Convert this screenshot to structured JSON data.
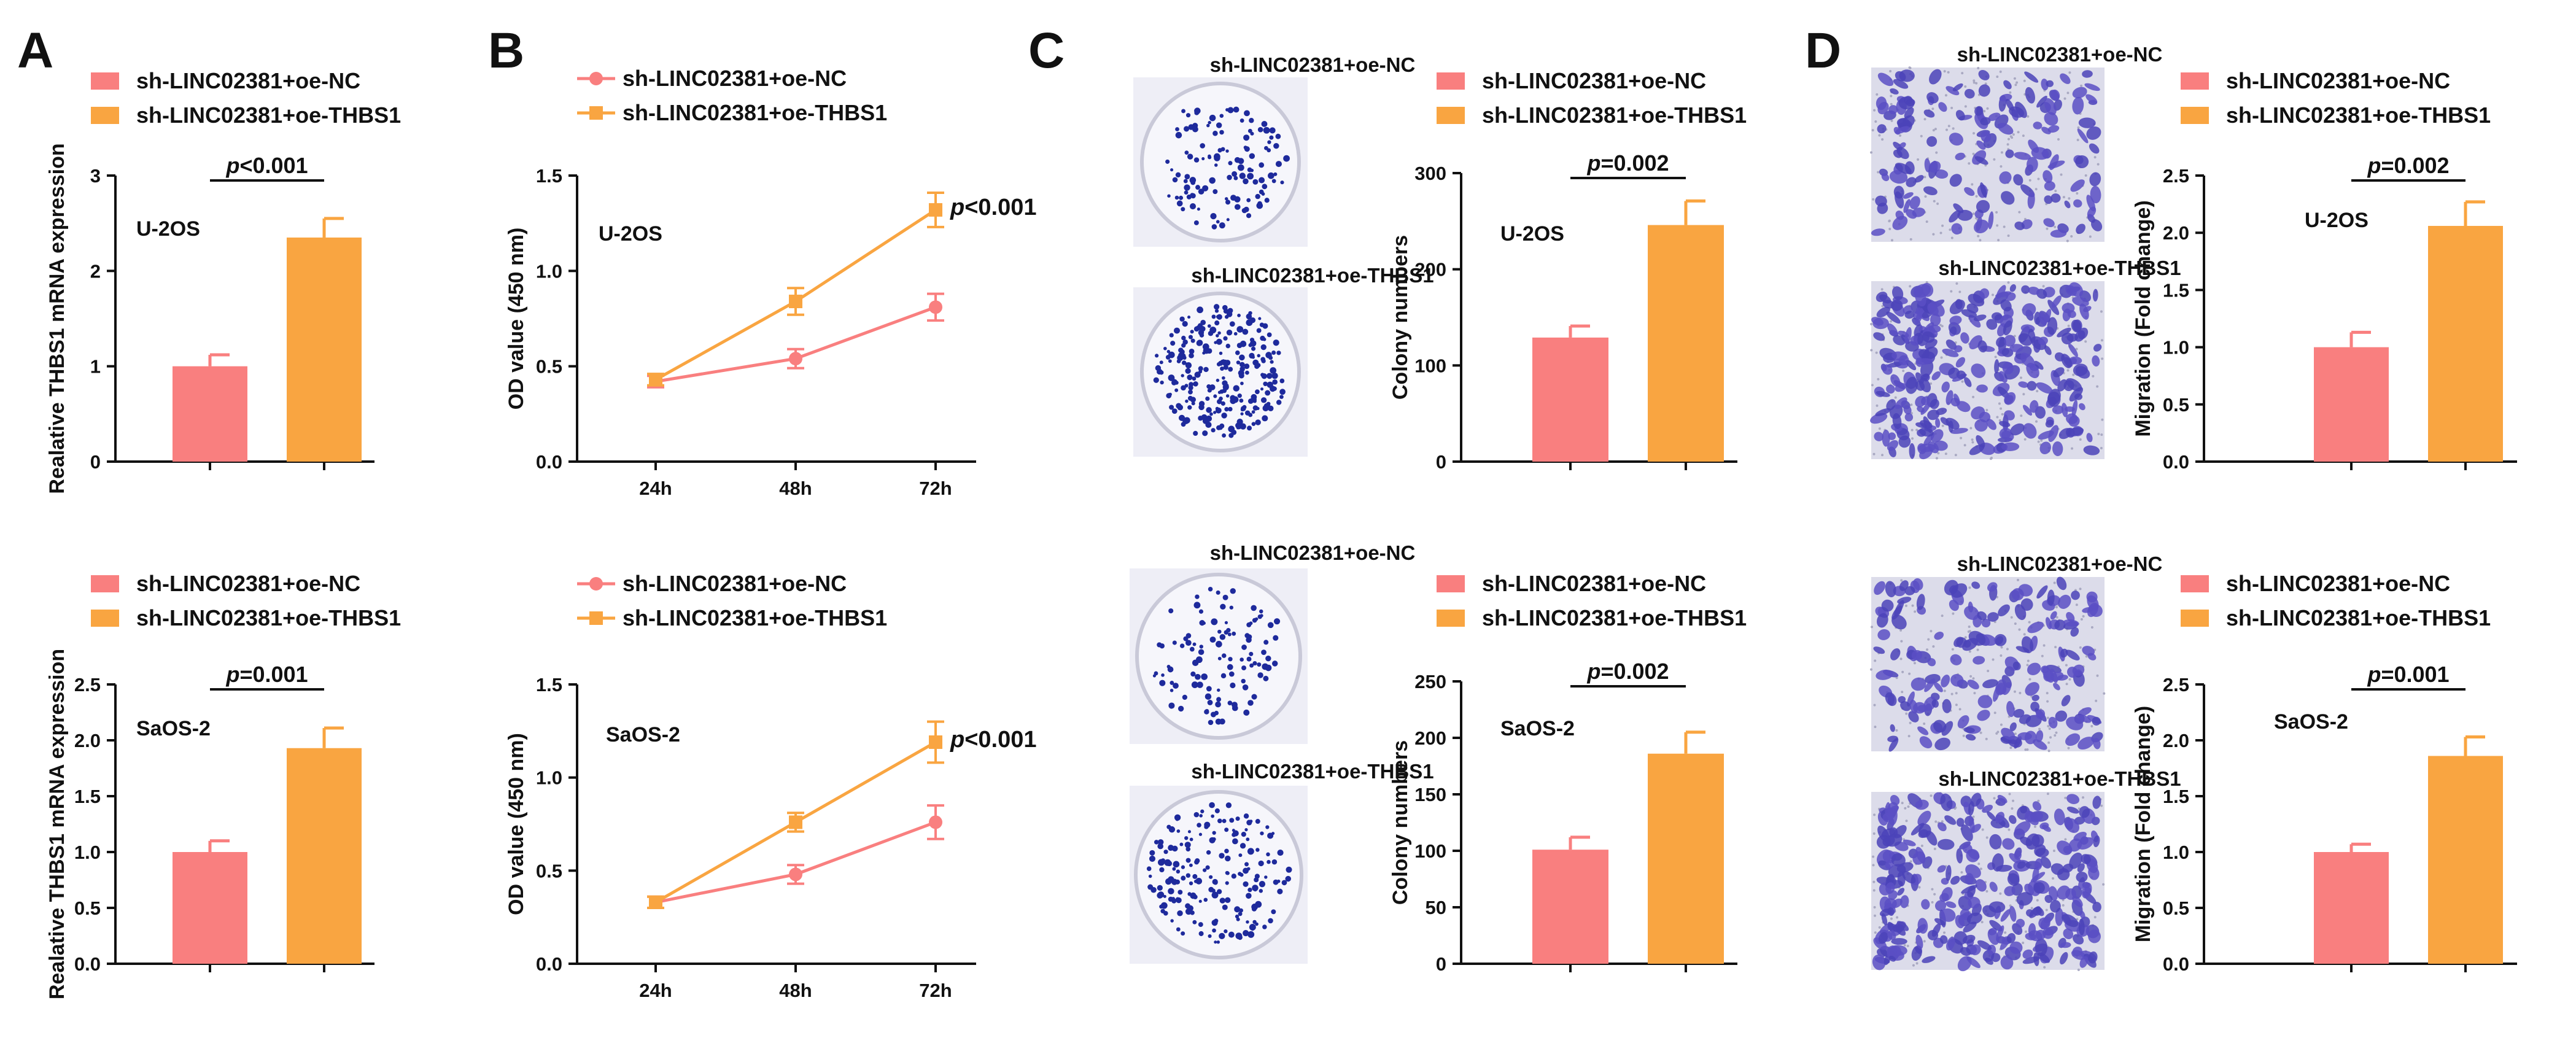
{
  "colors": {
    "nc": "#F97F7F",
    "thbs1": "#F9A541",
    "axis": "#111111",
    "dish": "#EDEDF6",
    "dot": "#1E2A9C",
    "cell": "#5A4FC4",
    "membrane": "#DCDCEA"
  },
  "legend": {
    "nc": "sh-LINC02381+oe-NC",
    "thbs1": "sh-LINC02381+oe-THBS1"
  },
  "panels": {
    "A": {
      "label": "A",
      "ylabel": "Realative THBS1 mRNA expression"
    },
    "B": {
      "label": "B",
      "ylabel": "OD value (450 nm)"
    },
    "C": {
      "label": "C",
      "ylabel": "Colony numbers"
    },
    "D": {
      "label": "D",
      "ylabel": "Migration (Fold change)"
    }
  },
  "image_captions": {
    "C_top_nc": "sh-LINC02381+oe-NC",
    "C_top_thbs1": "sh-LINC02381+oe-THBS1",
    "C_bottom_nc": "sh-LINC02381+oe-NC",
    "C_bottom_thbs1": "sh-LINC02381+oe-THBS1",
    "D_top_nc": "sh-LINC02381+oe-NC",
    "D_top_thbs1": "sh-LINC02381+oe-THBS1",
    "D_bottom_nc": "sh-LINC02381+oe-NC",
    "D_bottom_thbs1": "sh-LINC02381+oe-THBS1"
  },
  "chart_data": [
    {
      "id": "A1",
      "panel": "A",
      "type": "bar",
      "cell_line": "U-2OS",
      "series": [
        "sh-LINC02381+oe-NC",
        "sh-LINC02381+oe-THBS1"
      ],
      "values": [
        1.0,
        2.35
      ],
      "errors": [
        0.12,
        0.2
      ],
      "ylim": [
        0,
        3
      ],
      "yticks": [
        0,
        1,
        2,
        3
      ],
      "tick_labels": [
        "0",
        "1",
        "2",
        "3"
      ],
      "p_text": "p<0.001",
      "ylabel": "Realative THBS1 mRNA expression"
    },
    {
      "id": "A2",
      "panel": "A",
      "type": "bar",
      "cell_line": "SaOS-2",
      "series": [
        "sh-LINC02381+oe-NC",
        "sh-LINC02381+oe-THBS1"
      ],
      "values": [
        1.0,
        1.93
      ],
      "errors": [
        0.1,
        0.18
      ],
      "ylim": [
        0,
        2.5
      ],
      "yticks": [
        0,
        0.5,
        1,
        1.5,
        2,
        2.5
      ],
      "tick_labels": [
        "0.0",
        "0.5",
        "1.0",
        "1.5",
        "2.0",
        "2.5"
      ],
      "p_text": "p=0.001",
      "ylabel": "Realative THBS1 mRNA expression"
    },
    {
      "id": "B1",
      "panel": "B",
      "type": "line",
      "cell_line": "U-2OS",
      "categories": [
        "24h",
        "48h",
        "72h"
      ],
      "series": [
        {
          "name": "sh-LINC02381+oe-NC",
          "values": [
            0.42,
            0.54,
            0.81
          ],
          "errors": [
            0.03,
            0.05,
            0.07
          ]
        },
        {
          "name": "sh-LINC02381+oe-THBS1",
          "values": [
            0.43,
            0.84,
            1.32
          ],
          "errors": [
            0.03,
            0.07,
            0.09
          ]
        }
      ],
      "ylim": [
        0,
        1.5
      ],
      "yticks": [
        0,
        0.5,
        1,
        1.5
      ],
      "tick_labels": [
        "0.0",
        "0.5",
        "1.0",
        "1.5"
      ],
      "p_text": "p<0.001",
      "ylabel": "OD value (450 nm)"
    },
    {
      "id": "B2",
      "panel": "B",
      "type": "line",
      "cell_line": "SaOS-2",
      "categories": [
        "24h",
        "48h",
        "72h"
      ],
      "series": [
        {
          "name": "sh-LINC02381+oe-NC",
          "values": [
            0.33,
            0.48,
            0.76
          ],
          "errors": [
            0.03,
            0.05,
            0.09
          ]
        },
        {
          "name": "sh-LINC02381+oe-THBS1",
          "values": [
            0.33,
            0.76,
            1.19
          ],
          "errors": [
            0.03,
            0.05,
            0.11
          ]
        }
      ],
      "ylim": [
        0,
        1.5
      ],
      "yticks": [
        0,
        0.5,
        1,
        1.5
      ],
      "tick_labels": [
        "0.0",
        "0.5",
        "1.0",
        "1.5"
      ],
      "p_text": "p<0.001",
      "ylabel": "OD value (450 nm)"
    },
    {
      "id": "C1",
      "panel": "C",
      "type": "bar",
      "cell_line": "U-2OS",
      "series": [
        "sh-LINC02381+oe-NC",
        "sh-LINC02381+oe-THBS1"
      ],
      "values": [
        129,
        246
      ],
      "errors": [
        12,
        25
      ],
      "ylim": [
        0,
        300
      ],
      "yticks": [
        0,
        100,
        200,
        300
      ],
      "tick_labels": [
        "0",
        "100",
        "200",
        "300"
      ],
      "p_text": "p=0.002",
      "ylabel": "Colony numbers"
    },
    {
      "id": "C2",
      "panel": "C",
      "type": "bar",
      "cell_line": "SaOS-2",
      "series": [
        "sh-LINC02381+oe-NC",
        "sh-LINC02381+oe-THBS1"
      ],
      "values": [
        101,
        186
      ],
      "errors": [
        11,
        19
      ],
      "ylim": [
        0,
        250
      ],
      "yticks": [
        0,
        50,
        100,
        150,
        200,
        250
      ],
      "tick_labels": [
        "0",
        "50",
        "100",
        "150",
        "200",
        "250"
      ],
      "p_text": "p=0.002",
      "ylabel": "Colony numbers"
    },
    {
      "id": "D1",
      "panel": "D",
      "type": "bar",
      "cell_line": "U-2OS",
      "series": [
        "sh-LINC02381+oe-NC",
        "sh-LINC02381+oe-THBS1"
      ],
      "values": [
        1.0,
        2.06
      ],
      "errors": [
        0.13,
        0.21
      ],
      "ylim": [
        0,
        2.5
      ],
      "yticks": [
        0,
        0.5,
        1,
        1.5,
        2,
        2.5
      ],
      "tick_labels": [
        "0.0",
        "0.5",
        "1.0",
        "1.5",
        "2.0",
        "2.5"
      ],
      "p_text": "p=0.002",
      "ylabel": "Migration (Fold change)"
    },
    {
      "id": "D2",
      "panel": "D",
      "type": "bar",
      "cell_line": "SaOS-2",
      "series": [
        "sh-LINC02381+oe-NC",
        "sh-LINC02381+oe-THBS1"
      ],
      "values": [
        1.0,
        1.86
      ],
      "errors": [
        0.07,
        0.17
      ],
      "ylim": [
        0,
        2.5
      ],
      "yticks": [
        0,
        0.5,
        1,
        1.5,
        2,
        2.5
      ],
      "tick_labels": [
        "0.0",
        "0.5",
        "1.0",
        "1.5",
        "2.0",
        "2.5"
      ],
      "p_text": "p=0.001",
      "ylabel": "Migration (Fold change)"
    }
  ]
}
